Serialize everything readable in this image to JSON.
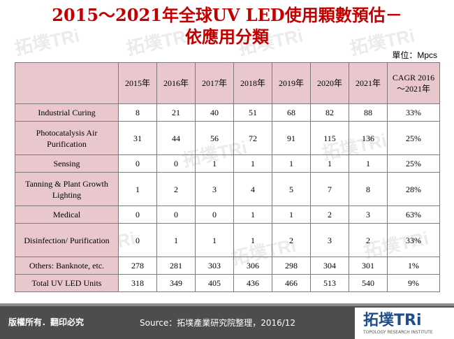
{
  "title_line1": "2015～2021年全球UV LED使用顆數預估－",
  "title_line2": "依應用分類",
  "unit": "單位：Mpcs",
  "chart_data": {
    "type": "table",
    "columns": [
      "2015年",
      "2016年",
      "2017年",
      "2018年",
      "2019年",
      "2020年",
      "2021年",
      "CAGR 2016～2021年"
    ],
    "rows": [
      {
        "label": "Industrial Curing",
        "values": [
          "8",
          "21",
          "40",
          "51",
          "68",
          "82",
          "88",
          "33%"
        ]
      },
      {
        "label": "Photocatalysis Air Purification",
        "values": [
          "31",
          "44",
          "56",
          "72",
          "91",
          "115",
          "136",
          "25%"
        ]
      },
      {
        "label": "Sensing",
        "values": [
          "0",
          "0",
          "1",
          "1",
          "1",
          "1",
          "1",
          "25%"
        ]
      },
      {
        "label": "Tanning & Plant Growth Lighting",
        "values": [
          "1",
          "2",
          "3",
          "4",
          "5",
          "7",
          "8",
          "28%"
        ]
      },
      {
        "label": "Medical",
        "values": [
          "0",
          "0",
          "0",
          "1",
          "1",
          "2",
          "3",
          "63%"
        ]
      },
      {
        "label": "Disinfection/ Purification",
        "values": [
          "0",
          "1",
          "1",
          "1",
          "2",
          "3",
          "2",
          "33%"
        ]
      },
      {
        "label": "Others: Banknote, etc.",
        "values": [
          "278",
          "281",
          "303",
          "306",
          "298",
          "304",
          "301",
          "1%"
        ]
      },
      {
        "label": "Total UV LED Units",
        "values": [
          "318",
          "349",
          "405",
          "436",
          "466",
          "513",
          "540",
          "9%"
        ]
      }
    ]
  },
  "footer": {
    "copyright": "版權所有．翻印必究",
    "source": "Source：拓墣產業研究院整理，2016/12"
  },
  "logo": {
    "name": "拓墣TRi",
    "tagline": "TOPOLOGY RESEARCH INSTITUTE"
  },
  "colors": {
    "title": "#c00000",
    "header_fill": "#e8c8cc",
    "footer_bg": "#4d4d4d",
    "logo_blue": "#1f4e8c"
  }
}
